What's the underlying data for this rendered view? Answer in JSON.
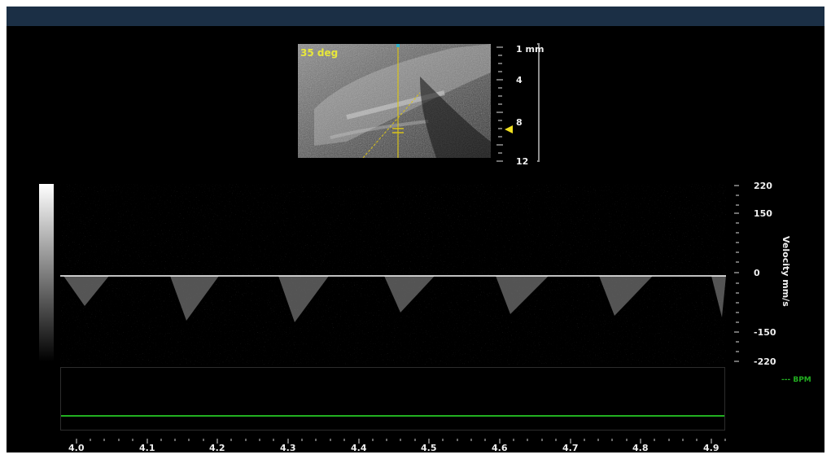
{
  "bmode": {
    "angle_label": "35 deg",
    "depth_unit": "mm",
    "depth_labels": [
      "1 mm",
      "4",
      "8",
      "12"
    ]
  },
  "doppler": {
    "velocity_axis_title": "Velocity mm/s",
    "velocity_ticks": [
      "220",
      "150",
      "0",
      "-150",
      "-220"
    ],
    "time_ticks": [
      "4.0",
      "4.1",
      "4.2",
      "4.3",
      "4.4",
      "4.5",
      "4.6",
      "4.7",
      "4.8",
      "4.9"
    ]
  },
  "bpm": {
    "legend": "--- BPM",
    "trace_color": "#22b021"
  },
  "colors": {
    "angle_text": "#e8e83a",
    "cursor_line": "#d8c21a",
    "baseline": "#ffffff",
    "top_bar": "#1b2f45"
  },
  "icons": {
    "depth_marker": "yellow-triangle-marker",
    "sample_gate": "sample-gate-icon"
  }
}
